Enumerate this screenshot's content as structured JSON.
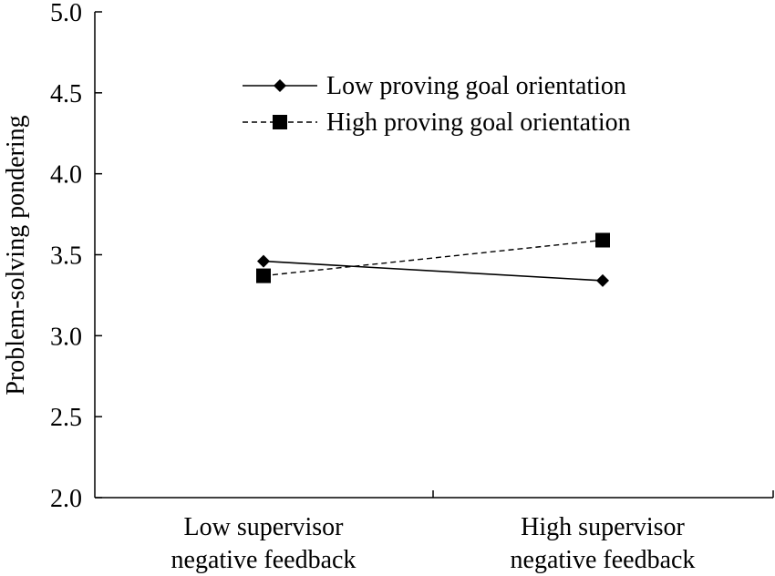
{
  "chart_data": {
    "type": "line",
    "title": "",
    "xlabel": "",
    "ylabel": "Problem-solving pondering",
    "ylim": [
      2.0,
      5.0
    ],
    "yticks": [
      "2.0",
      "2.5",
      "3.0",
      "3.5",
      "4.0",
      "4.5",
      "5.0"
    ],
    "categories": [
      [
        "Low supervisor",
        "negative feedback"
      ],
      [
        "High supervisor",
        "negative feedback"
      ]
    ],
    "legend_position": "top-center",
    "grid": false,
    "series": [
      {
        "name": "Low proving goal orientation",
        "values": [
          3.46,
          3.34
        ],
        "marker": "diamond",
        "line": "solid",
        "color": "#000000"
      },
      {
        "name": "High proving goal orientation",
        "values": [
          3.37,
          3.59
        ],
        "marker": "square",
        "line": "dashed",
        "color": "#000000"
      }
    ]
  }
}
